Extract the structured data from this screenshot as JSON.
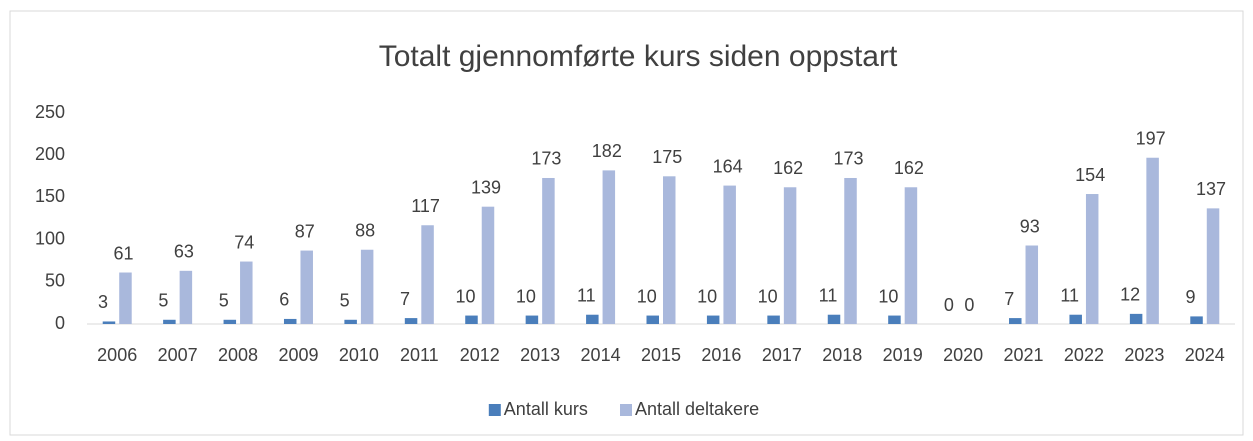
{
  "chart_data": {
    "type": "bar",
    "title": "Totalt gjennomførte kurs siden oppstart",
    "categories": [
      "2006",
      "2007",
      "2008",
      "2009",
      "2010",
      "2011",
      "2012",
      "2013",
      "2014",
      "2015",
      "2016",
      "2017",
      "2018",
      "2019",
      "2020",
      "2021",
      "2022",
      "2023",
      "2024"
    ],
    "series": [
      {
        "name": "Antall kurs",
        "color": "#4a7ebb",
        "values": [
          3,
          5,
          5,
          6,
          5,
          7,
          10,
          10,
          11,
          10,
          10,
          10,
          11,
          10,
          0,
          7,
          11,
          12,
          9
        ]
      },
      {
        "name": "Antall deltakere",
        "color": "#a9b8dc",
        "values": [
          61,
          63,
          74,
          87,
          88,
          117,
          139,
          173,
          182,
          175,
          164,
          162,
          173,
          162,
          0,
          93,
          154,
          197,
          137
        ]
      }
    ],
    "ylim": [
      0,
      250
    ],
    "yticks": [
      0,
      50,
      100,
      150,
      200,
      250
    ],
    "grid": false,
    "legend": "bottom"
  }
}
